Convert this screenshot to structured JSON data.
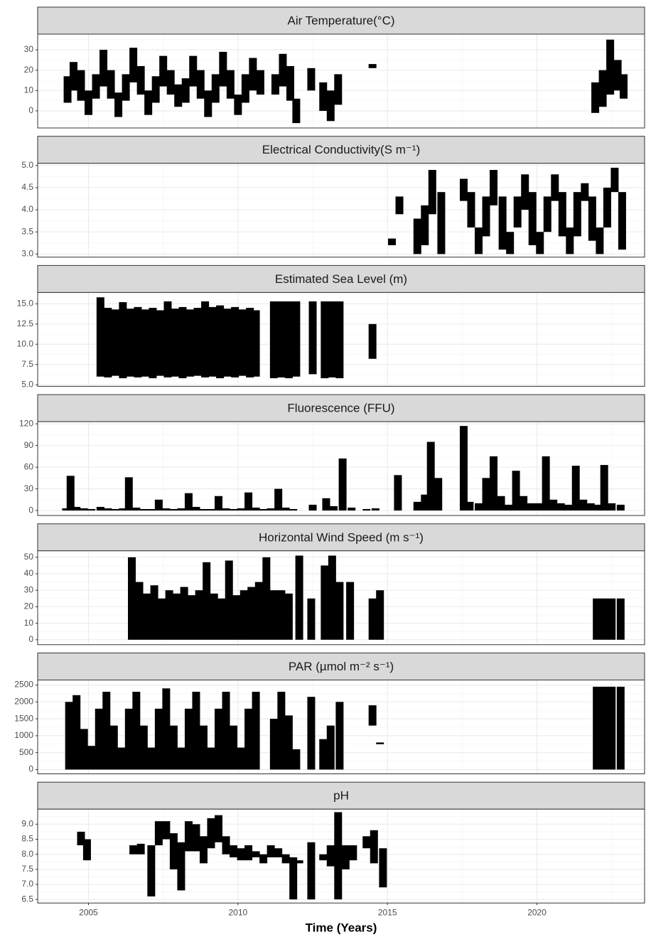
{
  "chart_data": [
    {
      "type": "range",
      "title": "Air Temperature(°C)",
      "color": "#000000",
      "grid": true,
      "xlim": [
        2003.3,
        2023.6
      ],
      "xticks": [
        2005,
        2010,
        2015,
        2020
      ],
      "ylim": [
        -8.4,
        37.7
      ],
      "yticks": [
        0,
        10,
        20,
        30
      ],
      "x": [
        2004.3,
        2004.5,
        2004.75,
        2005.0,
        2005.25,
        2005.5,
        2005.75,
        2006.0,
        2006.25,
        2006.5,
        2006.75,
        2007.0,
        2007.25,
        2007.5,
        2007.75,
        2008.0,
        2008.25,
        2008.5,
        2008.75,
        2009.0,
        2009.25,
        2009.5,
        2009.75,
        2010.0,
        2010.25,
        2010.5,
        2010.75,
        2011.25,
        2011.5,
        2011.75,
        2011.95,
        2012.45,
        2012.85,
        2013.1,
        2013.35,
        2014.5,
        2021.95,
        2022.2,
        2022.45,
        2022.7,
        2022.9
      ],
      "low": [
        4,
        10,
        5,
        -2,
        6,
        12,
        6,
        -3,
        5,
        14,
        8,
        -2,
        4,
        12,
        8,
        2,
        4,
        12,
        6,
        -3,
        4,
        12,
        6,
        -2,
        4,
        10,
        8,
        8,
        12,
        5,
        -6,
        10,
        0,
        -5,
        3,
        21,
        -1,
        2,
        8,
        10,
        6
      ],
      "high": [
        17,
        24,
        20,
        10,
        18,
        30,
        20,
        9,
        18,
        31,
        22,
        10,
        17,
        27,
        20,
        13,
        16,
        27,
        20,
        10,
        18,
        29,
        20,
        8,
        18,
        26,
        20,
        18,
        28,
        22,
        6,
        21,
        14,
        10,
        18,
        23,
        14,
        20,
        35,
        25,
        18
      ]
    },
    {
      "type": "range",
      "title": "Electrical Conductivity(S m⁻¹)",
      "color": "#000000",
      "grid": true,
      "xlim": [
        2003.3,
        2023.6
      ],
      "xticks": [
        2005,
        2010,
        2015,
        2020
      ],
      "ylim": [
        2.93,
        5.05
      ],
      "yticks": [
        {
          "value": 3,
          "label": "3.0"
        },
        3.5,
        {
          "value": 4,
          "label": "4.0"
        },
        4.5,
        {
          "value": 5,
          "label": "5.0"
        }
      ],
      "x": [
        2015.15,
        2015.4,
        2016.0,
        2016.25,
        2016.5,
        2016.8,
        2017.55,
        2017.8,
        2018.05,
        2018.3,
        2018.55,
        2018.85,
        2019.1,
        2019.35,
        2019.6,
        2019.85,
        2020.1,
        2020.35,
        2020.6,
        2020.85,
        2021.1,
        2021.35,
        2021.6,
        2021.85,
        2022.1,
        2022.35,
        2022.6,
        2022.85
      ],
      "low": [
        3.2,
        3.9,
        3.0,
        3.2,
        3.9,
        3.0,
        4.2,
        3.6,
        3.0,
        3.4,
        4.1,
        3.1,
        3.0,
        3.6,
        4.0,
        3.2,
        3.0,
        3.5,
        4.2,
        3.4,
        3.0,
        3.4,
        4.2,
        3.3,
        3.0,
        3.6,
        4.4,
        3.1
      ],
      "high": [
        3.35,
        4.3,
        3.8,
        4.1,
        4.9,
        4.4,
        4.7,
        4.4,
        3.6,
        4.3,
        4.9,
        4.3,
        3.5,
        4.3,
        4.8,
        4.4,
        3.5,
        4.3,
        4.8,
        4.4,
        3.6,
        4.4,
        4.6,
        4.3,
        3.6,
        4.5,
        4.95,
        4.4
      ]
    },
    {
      "type": "range",
      "title": "Estimated Sea Level (m)",
      "color": "#000000",
      "grid": true,
      "xlim": [
        2003.3,
        2023.6
      ],
      "xticks": [
        2005,
        2010,
        2015,
        2020
      ],
      "ylim": [
        4.8,
        16.4
      ],
      "yticks": [
        {
          "value": 5,
          "label": "5.0"
        },
        7.5,
        {
          "value": 10,
          "label": "10.0"
        },
        12.5,
        {
          "value": 15,
          "label": "15.0"
        }
      ],
      "x": [
        2005.4,
        2005.65,
        2005.9,
        2006.15,
        2006.4,
        2006.65,
        2006.9,
        2007.15,
        2007.4,
        2007.65,
        2007.9,
        2008.15,
        2008.4,
        2008.65,
        2008.9,
        2009.15,
        2009.4,
        2009.65,
        2009.9,
        2010.15,
        2010.4,
        2010.6,
        2011.2,
        2011.45,
        2011.7,
        2011.95,
        2012.5,
        2012.9,
        2013.15,
        2013.4,
        2014.5
      ],
      "low": [
        6.0,
        5.9,
        6.1,
        5.8,
        6.0,
        5.9,
        6.0,
        5.8,
        6.1,
        5.9,
        6.0,
        5.8,
        6.0,
        6.1,
        5.9,
        6.0,
        5.8,
        6.0,
        5.9,
        6.1,
        5.9,
        6.0,
        5.8,
        5.9,
        5.8,
        6.0,
        6.3,
        5.8,
        5.9,
        5.8,
        8.2
      ],
      "high": [
        15.8,
        14.5,
        14.3,
        15.2,
        14.4,
        14.6,
        14.3,
        14.5,
        14.2,
        15.3,
        14.4,
        14.6,
        14.3,
        14.5,
        15.3,
        14.6,
        14.8,
        14.4,
        14.6,
        14.3,
        14.5,
        14.2,
        15.3,
        15.3,
        15.3,
        15.3,
        15.3,
        15.3,
        15.3,
        15.3,
        12.5
      ]
    },
    {
      "type": "range",
      "title": "Fluorescence (FFU)",
      "color": "#000000",
      "grid": true,
      "xlim": [
        2003.3,
        2023.6
      ],
      "xticks": [
        2005,
        2010,
        2015,
        2020
      ],
      "ylim": [
        -6.9,
        123
      ],
      "yticks": [
        0,
        30,
        60,
        90,
        120
      ],
      "x": [
        2004.25,
        2004.4,
        2004.6,
        2004.85,
        2005.1,
        2005.4,
        2005.65,
        2005.9,
        2006.15,
        2006.35,
        2006.6,
        2006.85,
        2007.1,
        2007.35,
        2007.6,
        2007.85,
        2008.1,
        2008.35,
        2008.6,
        2008.85,
        2009.1,
        2009.35,
        2009.6,
        2009.85,
        2010.1,
        2010.35,
        2010.6,
        2010.85,
        2011.1,
        2011.35,
        2011.6,
        2011.85,
        2012.5,
        2012.95,
        2013.2,
        2013.5,
        2013.8,
        2014.3,
        2014.6,
        2015.35,
        2016.0,
        2016.25,
        2016.45,
        2016.7,
        2017.55,
        2017.75,
        2018.05,
        2018.3,
        2018.55,
        2018.8,
        2019.05,
        2019.3,
        2019.55,
        2019.8,
        2020.05,
        2020.3,
        2020.55,
        2020.8,
        2021.05,
        2021.3,
        2021.55,
        2021.8,
        2022.05,
        2022.25,
        2022.5,
        2022.8
      ],
      "low": [
        0,
        0,
        0,
        0,
        0,
        0,
        0,
        0,
        0,
        0,
        0,
        0,
        0,
        0,
        0,
        0,
        0,
        0,
        0,
        0,
        0,
        0,
        0,
        0,
        0,
        0,
        0,
        0,
        0,
        0,
        0,
        0,
        0,
        0,
        0,
        0,
        0,
        0,
        0,
        0,
        0,
        0,
        0,
        0,
        0,
        0,
        0,
        0,
        0,
        0,
        0,
        0,
        0,
        0,
        0,
        0,
        0,
        0,
        0,
        0,
        0,
        0,
        0,
        0,
        0,
        0
      ],
      "high": [
        3,
        48,
        5,
        3,
        2,
        5,
        3,
        2,
        3,
        46,
        4,
        2,
        2,
        15,
        3,
        2,
        3,
        24,
        5,
        2,
        2,
        20,
        3,
        2,
        3,
        25,
        4,
        2,
        3,
        30,
        4,
        2,
        8,
        17,
        6,
        72,
        4,
        2,
        3,
        49,
        12,
        22,
        95,
        45,
        117,
        12,
        10,
        45,
        75,
        20,
        8,
        55,
        20,
        10,
        10,
        75,
        15,
        10,
        8,
        62,
        15,
        10,
        8,
        63,
        10,
        8
      ]
    },
    {
      "type": "range",
      "title": "Horizontal Wind Speed (m s⁻¹)",
      "color": "#000000",
      "grid": true,
      "xlim": [
        2003.3,
        2023.6
      ],
      "xticks": [
        2005,
        2010,
        2015,
        2020
      ],
      "ylim": [
        -3,
        53.9
      ],
      "yticks": [
        0,
        10,
        20,
        30,
        40,
        50
      ],
      "x": [
        2006.45,
        2006.7,
        2006.95,
        2007.2,
        2007.45,
        2007.7,
        2007.95,
        2008.2,
        2008.45,
        2008.7,
        2008.95,
        2009.2,
        2009.45,
        2009.7,
        2009.95,
        2010.2,
        2010.45,
        2010.7,
        2010.95,
        2011.2,
        2011.45,
        2011.7,
        2012.05,
        2012.45,
        2012.9,
        2013.15,
        2013.4,
        2013.75,
        2014.5,
        2014.75,
        2022.0,
        2022.25,
        2022.5,
        2022.8
      ],
      "low": [
        0,
        0,
        0,
        0,
        0,
        0,
        0,
        0,
        0,
        0,
        0,
        0,
        0,
        0,
        0,
        0,
        0,
        0,
        0,
        0,
        0,
        0,
        0,
        0,
        0,
        0,
        0,
        0,
        0,
        0,
        0,
        0,
        0,
        0
      ],
      "high": [
        50,
        35,
        28,
        33,
        25,
        30,
        28,
        32,
        27,
        30,
        47,
        28,
        25,
        48,
        27,
        30,
        32,
        35,
        50,
        30,
        30,
        28,
        51,
        25,
        45,
        51,
        35,
        35,
        25,
        30,
        25,
        25,
        25,
        25
      ]
    },
    {
      "type": "range",
      "title": "PAR (µmol m⁻² s⁻¹)",
      "color": "#000000",
      "grid": true,
      "xlim": [
        2003.3,
        2023.6
      ],
      "xticks": [
        2005,
        2010,
        2015,
        2020
      ],
      "ylim": [
        -127,
        2648
      ],
      "yticks": [
        0,
        500,
        1000,
        1500,
        2000,
        2500
      ],
      "x": [
        2004.35,
        2004.6,
        2004.85,
        2005.1,
        2005.35,
        2005.6,
        2005.85,
        2006.1,
        2006.35,
        2006.6,
        2006.85,
        2007.1,
        2007.35,
        2007.6,
        2007.85,
        2008.1,
        2008.35,
        2008.6,
        2008.85,
        2009.1,
        2009.35,
        2009.6,
        2009.85,
        2010.1,
        2010.35,
        2010.6,
        2011.2,
        2011.45,
        2011.7,
        2011.95,
        2012.45,
        2012.85,
        2013.1,
        2013.4,
        2014.5,
        2014.75,
        2022.0,
        2022.25,
        2022.5,
        2022.8
      ],
      "low": [
        0,
        0,
        0,
        0,
        0,
        0,
        0,
        0,
        0,
        0,
        0,
        0,
        0,
        0,
        0,
        0,
        0,
        0,
        0,
        0,
        0,
        0,
        0,
        0,
        0,
        0,
        0,
        0,
        0,
        0,
        0,
        0,
        0,
        0,
        1300,
        750,
        0,
        0,
        0,
        0
      ],
      "high": [
        2000,
        2200,
        1200,
        700,
        1800,
        2300,
        1300,
        650,
        1800,
        2300,
        1300,
        650,
        1800,
        2400,
        1300,
        650,
        1800,
        2300,
        1300,
        650,
        1800,
        2300,
        1300,
        650,
        1800,
        2300,
        1500,
        2300,
        1600,
        600,
        2150,
        900,
        1300,
        2000,
        1900,
        800,
        2450,
        2450,
        2450,
        2450
      ]
    },
    {
      "type": "range",
      "title": "pH",
      "color": "#000000",
      "grid": true,
      "xlabel": "Time (Years)",
      "xlim": [
        2003.3,
        2023.6
      ],
      "xticks": [
        2005,
        2010,
        2015,
        2020
      ],
      "ylim": [
        6.38,
        9.5
      ],
      "yticks": [
        6.5,
        {
          "value": 7,
          "label": "7.0"
        },
        7.5,
        {
          "value": 8,
          "label": "8.0"
        },
        8.5,
        {
          "value": 9,
          "label": "9.0"
        }
      ],
      "x": [
        2004.75,
        2004.95,
        2006.5,
        2006.75,
        2007.1,
        2007.35,
        2007.6,
        2007.85,
        2008.1,
        2008.35,
        2008.6,
        2008.85,
        2009.1,
        2009.35,
        2009.6,
        2009.85,
        2010.1,
        2010.35,
        2010.6,
        2010.85,
        2011.1,
        2011.35,
        2011.6,
        2011.85,
        2012.05,
        2012.45,
        2012.85,
        2013.1,
        2013.35,
        2013.6,
        2013.85,
        2014.3,
        2014.55,
        2014.85
      ],
      "low": [
        8.3,
        7.8,
        8.0,
        8.0,
        6.6,
        8.3,
        8.5,
        7.5,
        6.8,
        8.1,
        8.1,
        7.7,
        8.2,
        8.4,
        8.0,
        7.9,
        7.8,
        7.8,
        7.9,
        7.7,
        7.9,
        7.9,
        7.7,
        6.5,
        7.7,
        6.5,
        7.8,
        7.6,
        6.5,
        7.5,
        7.8,
        8.2,
        7.7,
        6.9
      ],
      "high": [
        8.75,
        8.5,
        8.3,
        8.35,
        8.3,
        9.1,
        9.1,
        8.7,
        8.4,
        9.1,
        9.0,
        8.6,
        9.2,
        9.3,
        8.6,
        8.3,
        8.2,
        8.3,
        8.1,
        8.0,
        8.3,
        8.2,
        8.0,
        7.9,
        7.8,
        8.4,
        8.0,
        8.3,
        9.4,
        8.3,
        8.3,
        8.6,
        8.8,
        8.2
      ]
    }
  ]
}
